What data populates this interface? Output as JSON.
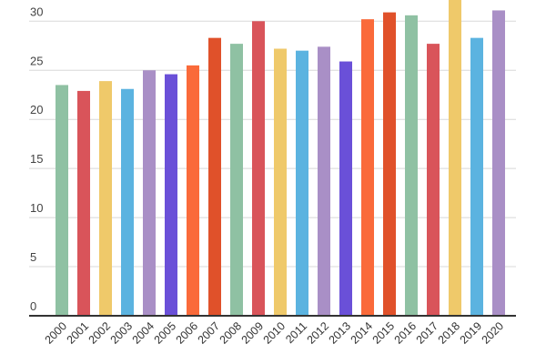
{
  "chart_data": {
    "type": "bar",
    "title": "",
    "xlabel": "",
    "ylabel": "",
    "ylim": [
      0,
      30
    ],
    "yticks": [
      "0",
      "5",
      "10",
      "15",
      "20",
      "25",
      "30"
    ],
    "grid": true,
    "categories": [
      "2000",
      "2001",
      "2002",
      "2003",
      "2004",
      "2005",
      "2006",
      "2007",
      "2008",
      "2009",
      "2010",
      "2011",
      "2012",
      "2013",
      "2014",
      "2015",
      "2016",
      "2017",
      "2018",
      "2019",
      "2020"
    ],
    "values": [
      23.5,
      22.9,
      23.9,
      23.1,
      25.0,
      24.6,
      25.5,
      28.3,
      27.7,
      30.0,
      27.2,
      27.0,
      27.4,
      25.9,
      30.2,
      30.9,
      30.6,
      27.7,
      32.2,
      28.3,
      31.1
    ],
    "colors": [
      "#8fc1a3",
      "#d9545a",
      "#efc96a",
      "#5bb3e0",
      "#a98fc6",
      "#6a50d8",
      "#fa6a3a",
      "#e0512a"
    ]
  }
}
